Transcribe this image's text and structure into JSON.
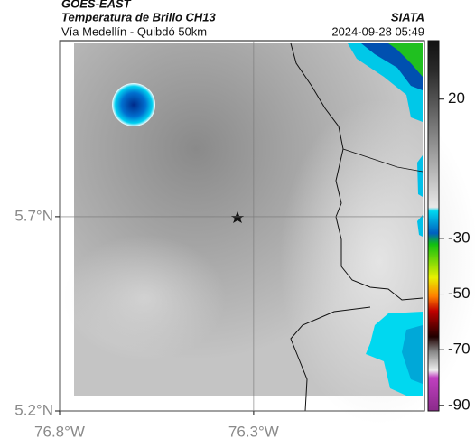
{
  "header": {
    "source": "GOES-EAST",
    "title": "Temperatura de Brillo CH13",
    "subtitle": "Vía Medellín - Quibdó 50km",
    "agency": "SIATA",
    "timestamp": "2024-09-28 05:49"
  },
  "map": {
    "xlim": [
      -76.8,
      -75.86
    ],
    "ylim": [
      5.2,
      6.153
    ],
    "xticks": [
      {
        "value": -76.8,
        "label": "76.8°W"
      },
      {
        "value": -76.3,
        "label": "76.3°W"
      }
    ],
    "yticks": [
      {
        "value": 5.2,
        "label": "5.2°N"
      },
      {
        "value": 5.7,
        "label": "5.7°N"
      }
    ],
    "grid": true
  },
  "colorbar": {
    "lim": [
      -92,
      41
    ],
    "ticks": [
      20,
      -30,
      -50,
      -70,
      -90
    ]
  }
}
